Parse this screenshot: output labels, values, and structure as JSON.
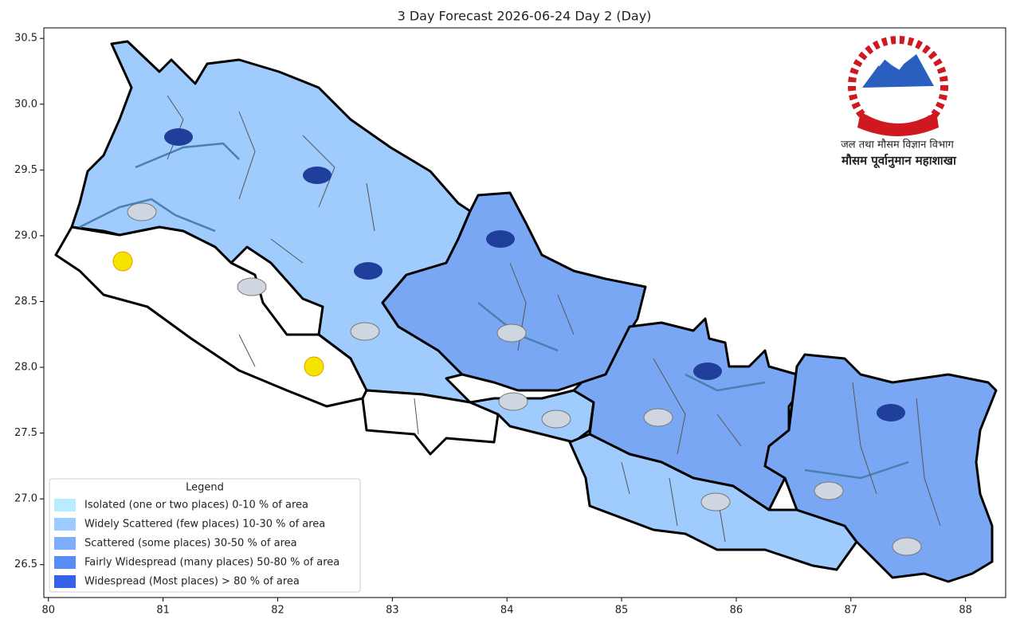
{
  "chart_data": {
    "type": "map",
    "title": "3 Day Forecast 2026-06-24 Day 2 (Day)",
    "xlim": [
      79.96,
      88.35
    ],
    "ylim": [
      26.25,
      30.58
    ],
    "xticks": [
      80,
      81,
      82,
      83,
      84,
      85,
      86,
      87,
      88
    ],
    "yticks": [
      {
        "value": 26.5,
        "label": "26.5"
      },
      {
        "value": 27,
        "label": "27.0"
      },
      {
        "value": 27.5,
        "label": "27.5"
      },
      {
        "value": 28,
        "label": "28.0"
      },
      {
        "value": 28.5,
        "label": "28.5"
      },
      {
        "value": 29,
        "label": "29.0"
      },
      {
        "value": 29.5,
        "label": "29.5"
      },
      {
        "value": 30,
        "label": "30.0"
      },
      {
        "value": 30.5,
        "label": "30.5"
      }
    ],
    "legend_title": "Legend",
    "legend_position": "lower left",
    "series": [
      {
        "name": "Isolated (one or two places)  0-10 % of area",
        "color": "#b9ecff"
      },
      {
        "name": "Widely Scattered (few places)  10-30 % of area",
        "color": "#9ecbff"
      },
      {
        "name": "Scattered (some places)  30-50 % of area",
        "color": "#7eadfb"
      },
      {
        "name": "Fairly Widespread (many places)  50-80 % of area",
        "color": "#5a8cf5"
      },
      {
        "name": "Widespread (Most places) > 80 % of area",
        "color": "#3463ea"
      }
    ],
    "annotations": [
      "जल तथा मौसम विज्ञान विभाग",
      "मौसम पूर्वानुमान महाशाखा"
    ]
  }
}
